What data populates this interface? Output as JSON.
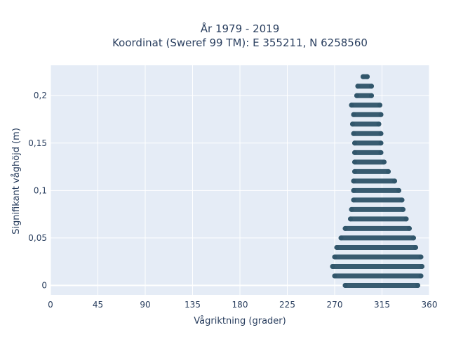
{
  "chart_data": {
    "type": "scatter",
    "title_lines": [
      "År 1979 - 2019",
      "Koordinat (Sweref 99 TM): E 355211, N 6258560"
    ],
    "xlabel": "Vågriktning (grader)",
    "ylabel": "Signifikant våghöjd (m)",
    "xlim": [
      0,
      360
    ],
    "ylim": [
      -0.01,
      0.232
    ],
    "x_ticks": [
      0,
      45,
      90,
      135,
      180,
      225,
      270,
      315,
      360
    ],
    "x_tick_labels": [
      "0",
      "45",
      "90",
      "135",
      "180",
      "225",
      "270",
      "315",
      "360"
    ],
    "y_ticks": [
      0,
      0.05,
      0.1,
      0.15,
      0.2
    ],
    "y_tick_labels": [
      "0",
      "0,05",
      "0,1",
      "0,15",
      "0,2"
    ],
    "grid": true,
    "marker_color": "#2f5469",
    "plot_background": "#e5ecf6",
    "series": [
      {
        "rows": [
          {
            "y": 0.0,
            "xmin": 280,
            "xmax": 349
          },
          {
            "y": 0.01,
            "xmin": 270,
            "xmax": 352
          },
          {
            "y": 0.02,
            "xmin": 268,
            "xmax": 353
          },
          {
            "y": 0.03,
            "xmin": 270,
            "xmax": 352
          },
          {
            "y": 0.04,
            "xmin": 272,
            "xmax": 347
          },
          {
            "y": 0.05,
            "xmin": 276,
            "xmax": 345
          },
          {
            "y": 0.06,
            "xmin": 280,
            "xmax": 341
          },
          {
            "y": 0.07,
            "xmin": 285,
            "xmax": 338
          },
          {
            "y": 0.08,
            "xmin": 286,
            "xmax": 335
          },
          {
            "y": 0.09,
            "xmin": 288,
            "xmax": 334
          },
          {
            "y": 0.1,
            "xmin": 288,
            "xmax": 331
          },
          {
            "y": 0.11,
            "xmin": 288,
            "xmax": 327
          },
          {
            "y": 0.12,
            "xmin": 289,
            "xmax": 321
          },
          {
            "y": 0.13,
            "xmin": 289,
            "xmax": 317
          },
          {
            "y": 0.14,
            "xmin": 289,
            "xmax": 314
          },
          {
            "y": 0.15,
            "xmin": 289,
            "xmax": 314
          },
          {
            "y": 0.16,
            "xmin": 288,
            "xmax": 314
          },
          {
            "y": 0.17,
            "xmin": 287,
            "xmax": 312
          },
          {
            "y": 0.18,
            "xmin": 288,
            "xmax": 314
          },
          {
            "y": 0.19,
            "xmin": 286,
            "xmax": 313
          },
          {
            "y": 0.2,
            "xmin": 291,
            "xmax": 305
          },
          {
            "y": 0.21,
            "xmin": 292,
            "xmax": 305
          },
          {
            "y": 0.22,
            "xmin": 297,
            "xmax": 301
          }
        ]
      }
    ]
  }
}
